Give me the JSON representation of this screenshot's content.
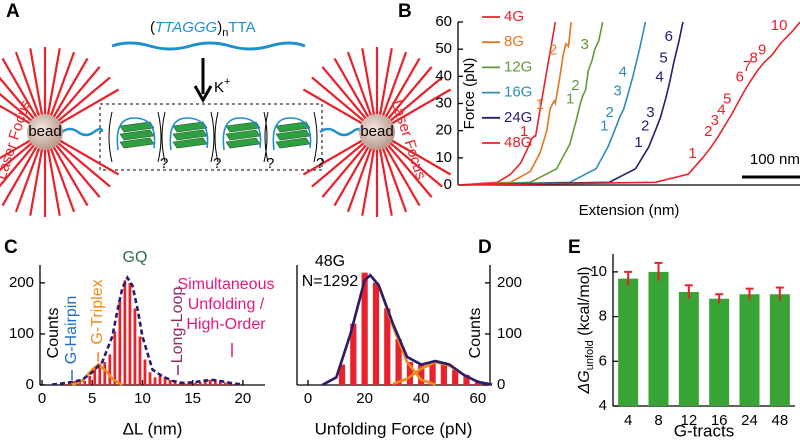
{
  "panel_labels": [
    "A",
    "B",
    "C",
    "D",
    "E"
  ],
  "diagram": {
    "sequence": [
      "(",
      "TTA",
      "GGG",
      ")",
      "n",
      "TTA"
    ],
    "ion": [
      "K",
      "+"
    ],
    "bead_labels": [
      "bead",
      "bead"
    ],
    "laser_labels": [
      "Laser Focus",
      "Laser Focus"
    ],
    "unknown_marks": [
      "?",
      "?",
      "?",
      "?"
    ]
  },
  "chart_data": [
    {
      "type": "line",
      "xlabel": "Extension (nm)",
      "ylabel": "Force (pN)",
      "xlim": [
        0,
        520
      ],
      "ylim": [
        0,
        60
      ],
      "yticks": [
        0,
        10,
        20,
        30,
        40,
        50,
        60
      ],
      "scale_bar": {
        "value": 100,
        "label": "100 nm"
      },
      "series": [
        {
          "name": "4G",
          "color": "#e8222a",
          "x": [
            0,
            60,
            80,
            95,
            105,
            112,
            116,
            118,
            125,
            135,
            148
          ],
          "values": [
            0,
            1,
            4,
            8,
            13,
            17,
            18,
            18,
            28,
            42,
            60
          ],
          "steps": [
            "1"
          ]
        },
        {
          "name": "8G",
          "color": "#e0771f",
          "x": [
            0,
            80,
            110,
            125,
            135,
            140,
            146,
            148,
            155,
            160,
            164,
            168,
            172
          ],
          "values": [
            0,
            1,
            5,
            12,
            20,
            28,
            31,
            30,
            40,
            48,
            52,
            51,
            60
          ],
          "steps": [
            "1",
            "2"
          ]
        },
        {
          "name": "12G",
          "color": "#5f9a3a",
          "x": [
            0,
            110,
            150,
            170,
            180,
            186,
            190,
            194,
            198,
            204,
            208,
            214,
            220
          ],
          "values": [
            0,
            1,
            6,
            15,
            24,
            30,
            33,
            35,
            42,
            46,
            50,
            53,
            60
          ],
          "steps": [
            "1",
            "2",
            "3"
          ]
        },
        {
          "name": "16G",
          "color": "#2d8cb8",
          "x": [
            0,
            170,
            210,
            228,
            238,
            246,
            252,
            258,
            266,
            276,
            285
          ],
          "values": [
            0,
            1,
            6,
            14,
            20,
            25,
            28,
            33,
            40,
            50,
            60
          ],
          "steps": [
            "1",
            "2",
            "3",
            "4"
          ]
        },
        {
          "name": "24G",
          "color": "#2a1b6e",
          "x": [
            0,
            230,
            270,
            290,
            300,
            308,
            316,
            322,
            328,
            336,
            342
          ],
          "values": [
            0,
            1,
            6,
            14,
            20,
            25,
            32,
            38,
            45,
            53,
            60
          ],
          "steps": [
            "1",
            "2",
            "3",
            "4",
            "5",
            "6"
          ]
        },
        {
          "name": "48G",
          "color": "#e8222a",
          "x": [
            0,
            300,
            350,
            372,
            385,
            396,
            406,
            416,
            425,
            434,
            444,
            455,
            465,
            478,
            490,
            510,
            520
          ],
          "values": [
            0,
            1,
            4,
            10,
            14,
            18,
            22,
            26,
            30,
            34,
            38,
            42,
            45,
            48,
            52,
            57,
            60
          ],
          "steps": [
            "1",
            "2",
            "3",
            "4",
            "5",
            "6",
            "7",
            "8",
            "9",
            "10"
          ]
        }
      ]
    },
    {
      "type": "histogram",
      "xlabel": "ΔL (nm)",
      "ylabel": "Counts",
      "color": "#e8222a",
      "yaxis": "left",
      "bins": [
        2,
        2.5,
        3,
        3.5,
        4,
        4.5,
        5,
        5.5,
        6,
        6.5,
        7,
        7.5,
        8,
        8.5,
        9,
        9.5,
        10,
        10.5,
        11,
        11.5,
        12,
        12.5,
        13,
        13.5,
        14,
        14.5,
        15,
        15.5,
        16,
        16.5,
        17,
        17.5,
        18,
        18.5,
        19,
        19.5
      ],
      "values": [
        2,
        5,
        8,
        6,
        8,
        18,
        32,
        42,
        45,
        60,
        105,
        165,
        205,
        200,
        150,
        95,
        50,
        25,
        15,
        18,
        16,
        10,
        6,
        4,
        3,
        3,
        4,
        6,
        8,
        10,
        10,
        8,
        5,
        3,
        2
      ],
      "xlim": [
        -0.2,
        22.2
      ],
      "xticks": [
        0,
        5,
        10,
        15,
        20
      ],
      "ylim": [
        0,
        235
      ],
      "yticks": [
        0,
        100,
        200
      ],
      "fits": [
        {
          "color": "#f08a1c",
          "dashed": false,
          "x": [
            3,
            4,
            5,
            5.6,
            6.5,
            7,
            8
          ],
          "values": [
            0,
            8,
            30,
            40,
            25,
            12,
            0
          ]
        },
        {
          "color": "#2a1b6e",
          "dashed": true,
          "x": [
            1,
            2,
            3,
            4,
            5,
            6,
            7,
            7.5,
            8,
            8.5,
            9,
            9.5,
            10,
            11,
            12,
            13,
            14,
            15,
            16,
            17,
            18,
            19,
            20
          ],
          "values": [
            1,
            3,
            6,
            10,
            25,
            45,
            95,
            145,
            190,
            210,
            195,
            150,
            95,
            30,
            17,
            8,
            4,
            5,
            8,
            10,
            7,
            3,
            1
          ]
        }
      ],
      "annotations": [
        {
          "lines": [
            "G-Hairpin"
          ],
          "color": "#1e6fc0"
        },
        {
          "lines": [
            "G-Triplex"
          ],
          "color": "#f08a1c"
        },
        {
          "lines": [
            "GQ"
          ],
          "color": "#2e6e4e"
        },
        {
          "lines": [
            "Long-Loop"
          ],
          "color": "#8b2c6e"
        },
        {
          "lines": [
            "Simultaneous",
            "Unfolding /",
            "High-Order"
          ],
          "color": "#e8177d"
        }
      ]
    },
    {
      "type": "histogram",
      "xlabel": "Unfolding Force (pN)",
      "ylabel": "Counts",
      "color": "#e8222a",
      "yaxis": "right",
      "bins": [
        10,
        14,
        18,
        22,
        26,
        30,
        34,
        38,
        42,
        46,
        50,
        54,
        58,
        62
      ],
      "values": [
        40,
        120,
        220,
        200,
        150,
        90,
        45,
        40,
        45,
        45,
        30,
        20,
        5
      ],
      "xlim": [
        -3.9,
        64.3
      ],
      "xticks": [
        0,
        20,
        40,
        60
      ],
      "ylim": [
        0,
        235
      ],
      "yticks": [
        0,
        100,
        200
      ],
      "fits": [
        {
          "color": "#f08a1c",
          "dashed": false,
          "x": [
            5,
            10,
            15,
            20,
            22,
            25,
            30,
            35,
            40,
            45
          ],
          "values": [
            0,
            15,
            100,
            205,
            215,
            195,
            115,
            45,
            10,
            1
          ]
        },
        {
          "color": "#f08a1c",
          "dashed": false,
          "x": [
            30,
            35,
            40,
            45,
            50,
            55,
            60,
            65
          ],
          "values": [
            2,
            12,
            32,
            45,
            38,
            20,
            6,
            1
          ]
        },
        {
          "color": "#2a1b6e",
          "dashed": false,
          "x": [
            5,
            10,
            15,
            20,
            22,
            25,
            30,
            35,
            40,
            45,
            50,
            55,
            60,
            65
          ],
          "values": [
            0,
            15,
            100,
            205,
            215,
            195,
            120,
            55,
            40,
            47,
            40,
            20,
            6,
            1
          ]
        }
      ],
      "annotations": [
        {
          "lines": [
            "48G",
            "N=1292"
          ],
          "color": "#000000"
        }
      ]
    },
    {
      "type": "bar",
      "xlabel": "G-tracts",
      "ylabel": {
        "symbol": "ΔG",
        "subscript": "unfold",
        "unit": " (kcal/mol)"
      },
      "categories": [
        "4",
        "8",
        "12",
        "16",
        "24",
        "48"
      ],
      "values": [
        9.7,
        10.0,
        9.1,
        8.8,
        9.0,
        9.0
      ],
      "errors": [
        0.3,
        0.4,
        0.3,
        0.2,
        0.25,
        0.3
      ],
      "color": "#3aa335",
      "error_color": "#e8222a",
      "ylim": [
        4,
        10.8
      ],
      "yticks": [
        4,
        6,
        8,
        10
      ]
    }
  ]
}
